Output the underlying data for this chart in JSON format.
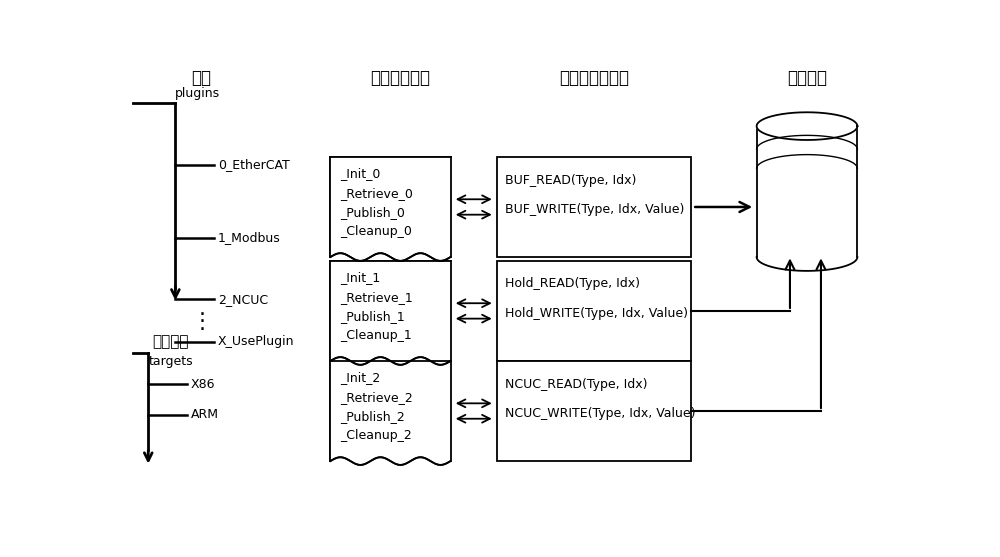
{
  "bg_color": "#ffffff",
  "title_plugins": "插件",
  "title_plugins_en": "plugins",
  "title_hardware": "硬件平台",
  "title_hardware_en": "targets",
  "title_mgmt": "插件管理动作",
  "title_func": "插件内的功能块",
  "title_dict": "数据字典",
  "plugin_items": [
    "0_EtherCAT",
    "1_Modbus",
    "2_NCUC",
    "X_UsePlugin"
  ],
  "target_items": [
    "X86",
    "ARM"
  ],
  "mgmt_blocks": [
    [
      "_Init_0",
      "_Retrieve_0",
      "_Publish_0",
      "_Cleanup_0"
    ],
    [
      "_Init_1",
      "_Retrieve_1",
      "_Publish_1",
      "_Cleanup_1"
    ],
    [
      "_Init_2",
      "_Retrieve_2",
      "_Publish_2",
      "_Cleanup_2"
    ]
  ],
  "func_blocks": [
    [
      "BUF_READ(Type, Idx)",
      "BUF_WRITE(Type, Idx, Value)"
    ],
    [
      "Hold_READ(Type, Idx)",
      "Hold_WRITE(Type, Idx, Value)"
    ],
    [
      "NCUC_READ(Type, Idx)",
      "NCUC_WRITE(Type, Idx, Value)"
    ]
  ],
  "line_color": "#000000",
  "text_color": "#000000",
  "font_size": 9,
  "font_size_title": 12
}
